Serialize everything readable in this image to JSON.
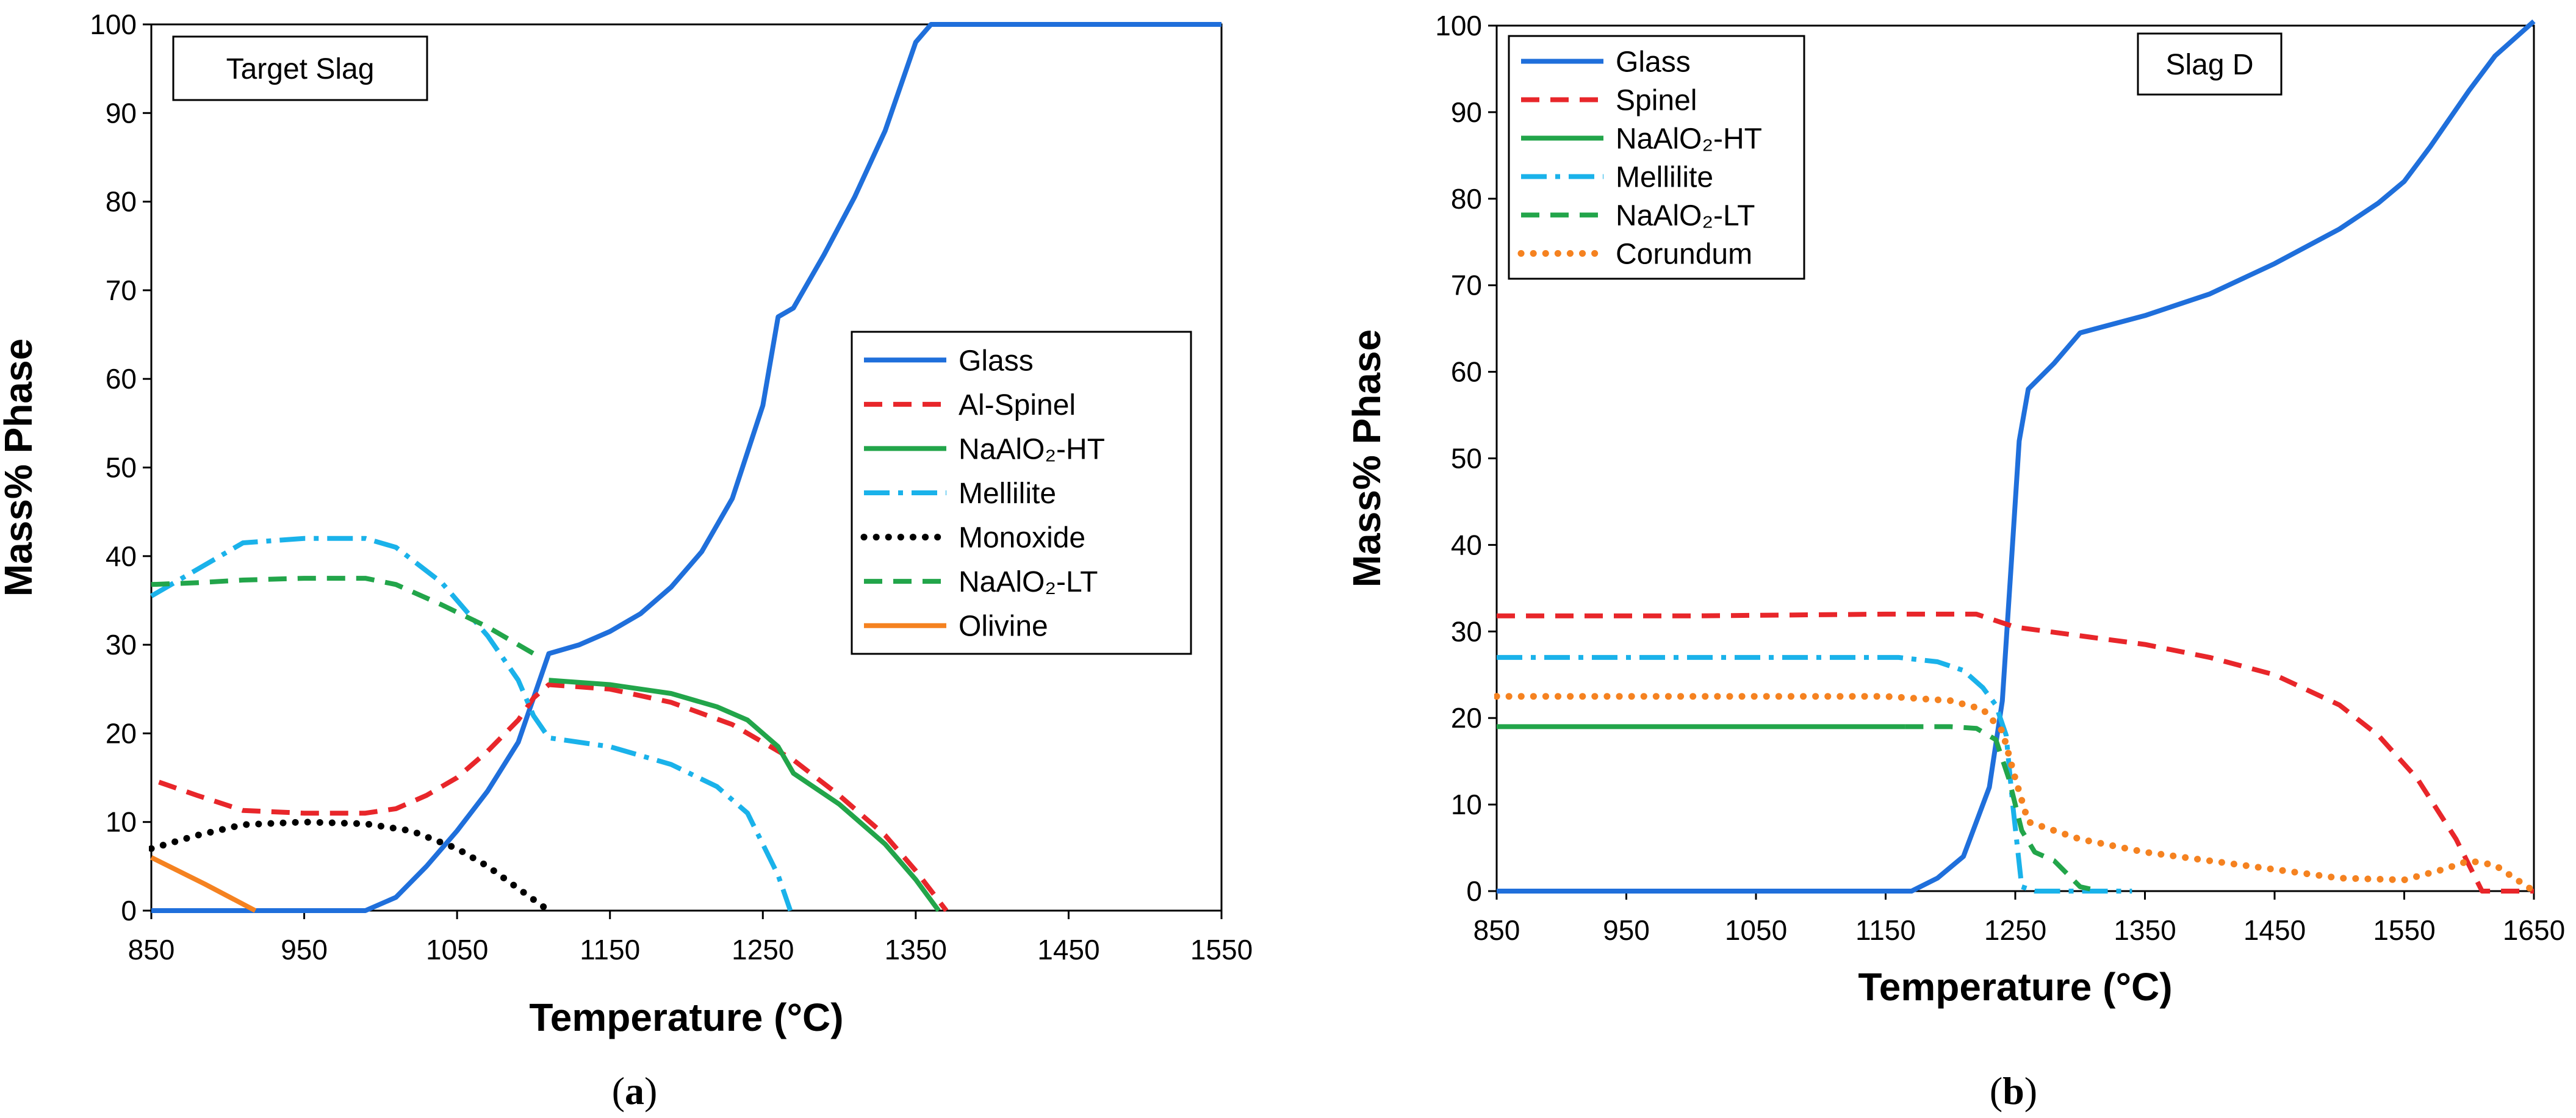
{
  "chart_data": [
    {
      "type": "line",
      "caption": "a",
      "title": "Target Slag",
      "xlabel": "Temperature (°C)",
      "ylabel": "Mass% Phase",
      "xlim": [
        850,
        1550
      ],
      "ylim": [
        0,
        100
      ],
      "xticks": [
        850,
        950,
        1050,
        1150,
        1250,
        1350,
        1450,
        1550
      ],
      "yticks": [
        0,
        10,
        20,
        30,
        40,
        50,
        60,
        70,
        80,
        90,
        100
      ],
      "legend_position": "center-right",
      "series": [
        {
          "name": "Glass",
          "color": "#1f6fdb",
          "dash": "solid",
          "x": [
            850,
            990,
            1010,
            1030,
            1050,
            1070,
            1090,
            1110,
            1130,
            1150,
            1170,
            1190,
            1210,
            1230,
            1250,
            1260,
            1270,
            1290,
            1310,
            1330,
            1350,
            1360,
            1370,
            1450,
            1550
          ],
          "y": [
            0,
            0,
            1.5,
            5,
            9,
            13.5,
            19,
            29,
            30,
            31.5,
            33.5,
            36.5,
            40.5,
            46.5,
            57,
            67,
            68,
            74,
            80.5,
            88,
            98,
            100,
            100,
            100,
            100
          ]
        },
        {
          "name": "Al-Spinel",
          "color": "#e8262a",
          "dash": "dashed",
          "x": [
            855,
            880,
            910,
            950,
            990,
            1010,
            1030,
            1050,
            1070,
            1090,
            1100,
            1110,
            1150,
            1190,
            1230,
            1250,
            1270,
            1300,
            1330,
            1350,
            1370
          ],
          "y": [
            14.5,
            13,
            11.3,
            11,
            11,
            11.5,
            13,
            15,
            18,
            21.5,
            24,
            25.5,
            25,
            23.5,
            21,
            19,
            17,
            13,
            8.5,
            4.5,
            0
          ]
        },
        {
          "name": "NaAlO₂-HT",
          "color": "#22a54a",
          "dash": "solid",
          "x": [
            1110,
            1150,
            1190,
            1220,
            1240,
            1260,
            1270,
            1300,
            1330,
            1350,
            1365
          ],
          "y": [
            26,
            25.5,
            24.5,
            23,
            21.5,
            18.5,
            15.5,
            12,
            7.5,
            3.5,
            0
          ]
        },
        {
          "name": "Mellilite",
          "color": "#1ab2ea",
          "dash": "dashdot",
          "x": [
            850,
            880,
            910,
            950,
            990,
            1010,
            1040,
            1070,
            1090,
            1100,
            1110,
            1150,
            1190,
            1220,
            1240,
            1260,
            1268
          ],
          "y": [
            35.5,
            38.5,
            41.5,
            42,
            42,
            41,
            37,
            31,
            26,
            22,
            19.5,
            18.5,
            16.5,
            14,
            11,
            4,
            0
          ]
        },
        {
          "name": "Monoxide",
          "color": "#000000",
          "dash": "dotted",
          "x": [
            850,
            880,
            910,
            950,
            990,
            1020,
            1050,
            1070,
            1090,
            1110
          ],
          "y": [
            7,
            8.5,
            9.7,
            10,
            9.8,
            9,
            7,
            5,
            2.5,
            0
          ]
        },
        {
          "name": "NaAlO₂-LT",
          "color": "#22a54a",
          "dash": "dashed",
          "x": [
            850,
            880,
            910,
            950,
            990,
            1010,
            1040,
            1070,
            1090,
            1100
          ],
          "y": [
            36.8,
            37,
            37.3,
            37.5,
            37.5,
            36.8,
            34.5,
            32,
            30,
            29
          ]
        },
        {
          "name": "Olivine",
          "color": "#f58220",
          "dash": "solid",
          "x": [
            850,
            885,
            918
          ],
          "y": [
            6,
            3,
            0
          ]
        }
      ]
    },
    {
      "type": "line",
      "caption": "b",
      "title": "Slag D",
      "xlabel": "Temperature (°C)",
      "ylabel": "Mass% Phase",
      "xlim": [
        850,
        1650
      ],
      "ylim": [
        0,
        100
      ],
      "xticks": [
        850,
        950,
        1050,
        1150,
        1250,
        1350,
        1450,
        1550,
        1650
      ],
      "yticks": [
        0,
        10,
        20,
        30,
        40,
        50,
        60,
        70,
        80,
        90,
        100
      ],
      "legend_position": "top-left",
      "series": [
        {
          "name": "Glass",
          "color": "#1f6fdb",
          "dash": "solid",
          "x": [
            850,
            1170,
            1190,
            1210,
            1230,
            1240,
            1247,
            1253,
            1260,
            1280,
            1300,
            1350,
            1400,
            1450,
            1500,
            1530,
            1550,
            1570,
            1600,
            1620,
            1650
          ],
          "y": [
            0,
            0,
            1.5,
            4,
            12,
            22,
            38,
            52,
            58,
            61,
            64.5,
            66.5,
            69,
            72.5,
            76.5,
            79.5,
            82,
            86,
            92.5,
            96.5,
            100.5
          ]
        },
        {
          "name": "Spinel",
          "color": "#e8262a",
          "dash": "dashed",
          "x": [
            850,
            1000,
            1150,
            1220,
            1250,
            1300,
            1350,
            1400,
            1450,
            1500,
            1530,
            1560,
            1590,
            1610,
            1650
          ],
          "y": [
            31.8,
            31.8,
            32,
            32,
            30.5,
            29.5,
            28.5,
            27,
            25,
            21.5,
            18,
            13,
            6,
            0,
            0
          ]
        },
        {
          "name": "NaAlO₂-HT",
          "color": "#22a54a",
          "dash": "solid",
          "x": [
            850,
            1165
          ],
          "y": [
            19,
            19
          ]
        },
        {
          "name": "Mellilite",
          "color": "#1ab2ea",
          "dash": "dashdot",
          "x": [
            850,
            1160,
            1190,
            1210,
            1225,
            1235,
            1243,
            1248,
            1255,
            1265,
            1340
          ],
          "y": [
            27,
            27,
            26.5,
            25.5,
            23.5,
            21.5,
            18,
            10,
            0.5,
            0,
            0
          ]
        },
        {
          "name": "NaAlO₂-LT",
          "color": "#22a54a",
          "dash": "dashed",
          "x": [
            1165,
            1200,
            1220,
            1235,
            1245,
            1255,
            1265,
            1280,
            1300,
            1315
          ],
          "y": [
            19,
            19,
            18.8,
            17.5,
            13,
            7,
            4.5,
            3.5,
            0.5,
            0
          ]
        },
        {
          "name": "Corundum",
          "color": "#f58220",
          "dash": "dotted",
          "x": [
            850,
            1000,
            1150,
            1200,
            1225,
            1240,
            1250,
            1260,
            1300,
            1350,
            1400,
            1450,
            1500,
            1550,
            1580,
            1600,
            1620,
            1650
          ],
          "y": [
            22.5,
            22.5,
            22.5,
            22,
            21,
            18.5,
            13,
            8,
            6,
            4.5,
            3.5,
            2.5,
            1.5,
            1.3,
            2.5,
            3.5,
            3,
            0
          ]
        }
      ]
    }
  ]
}
